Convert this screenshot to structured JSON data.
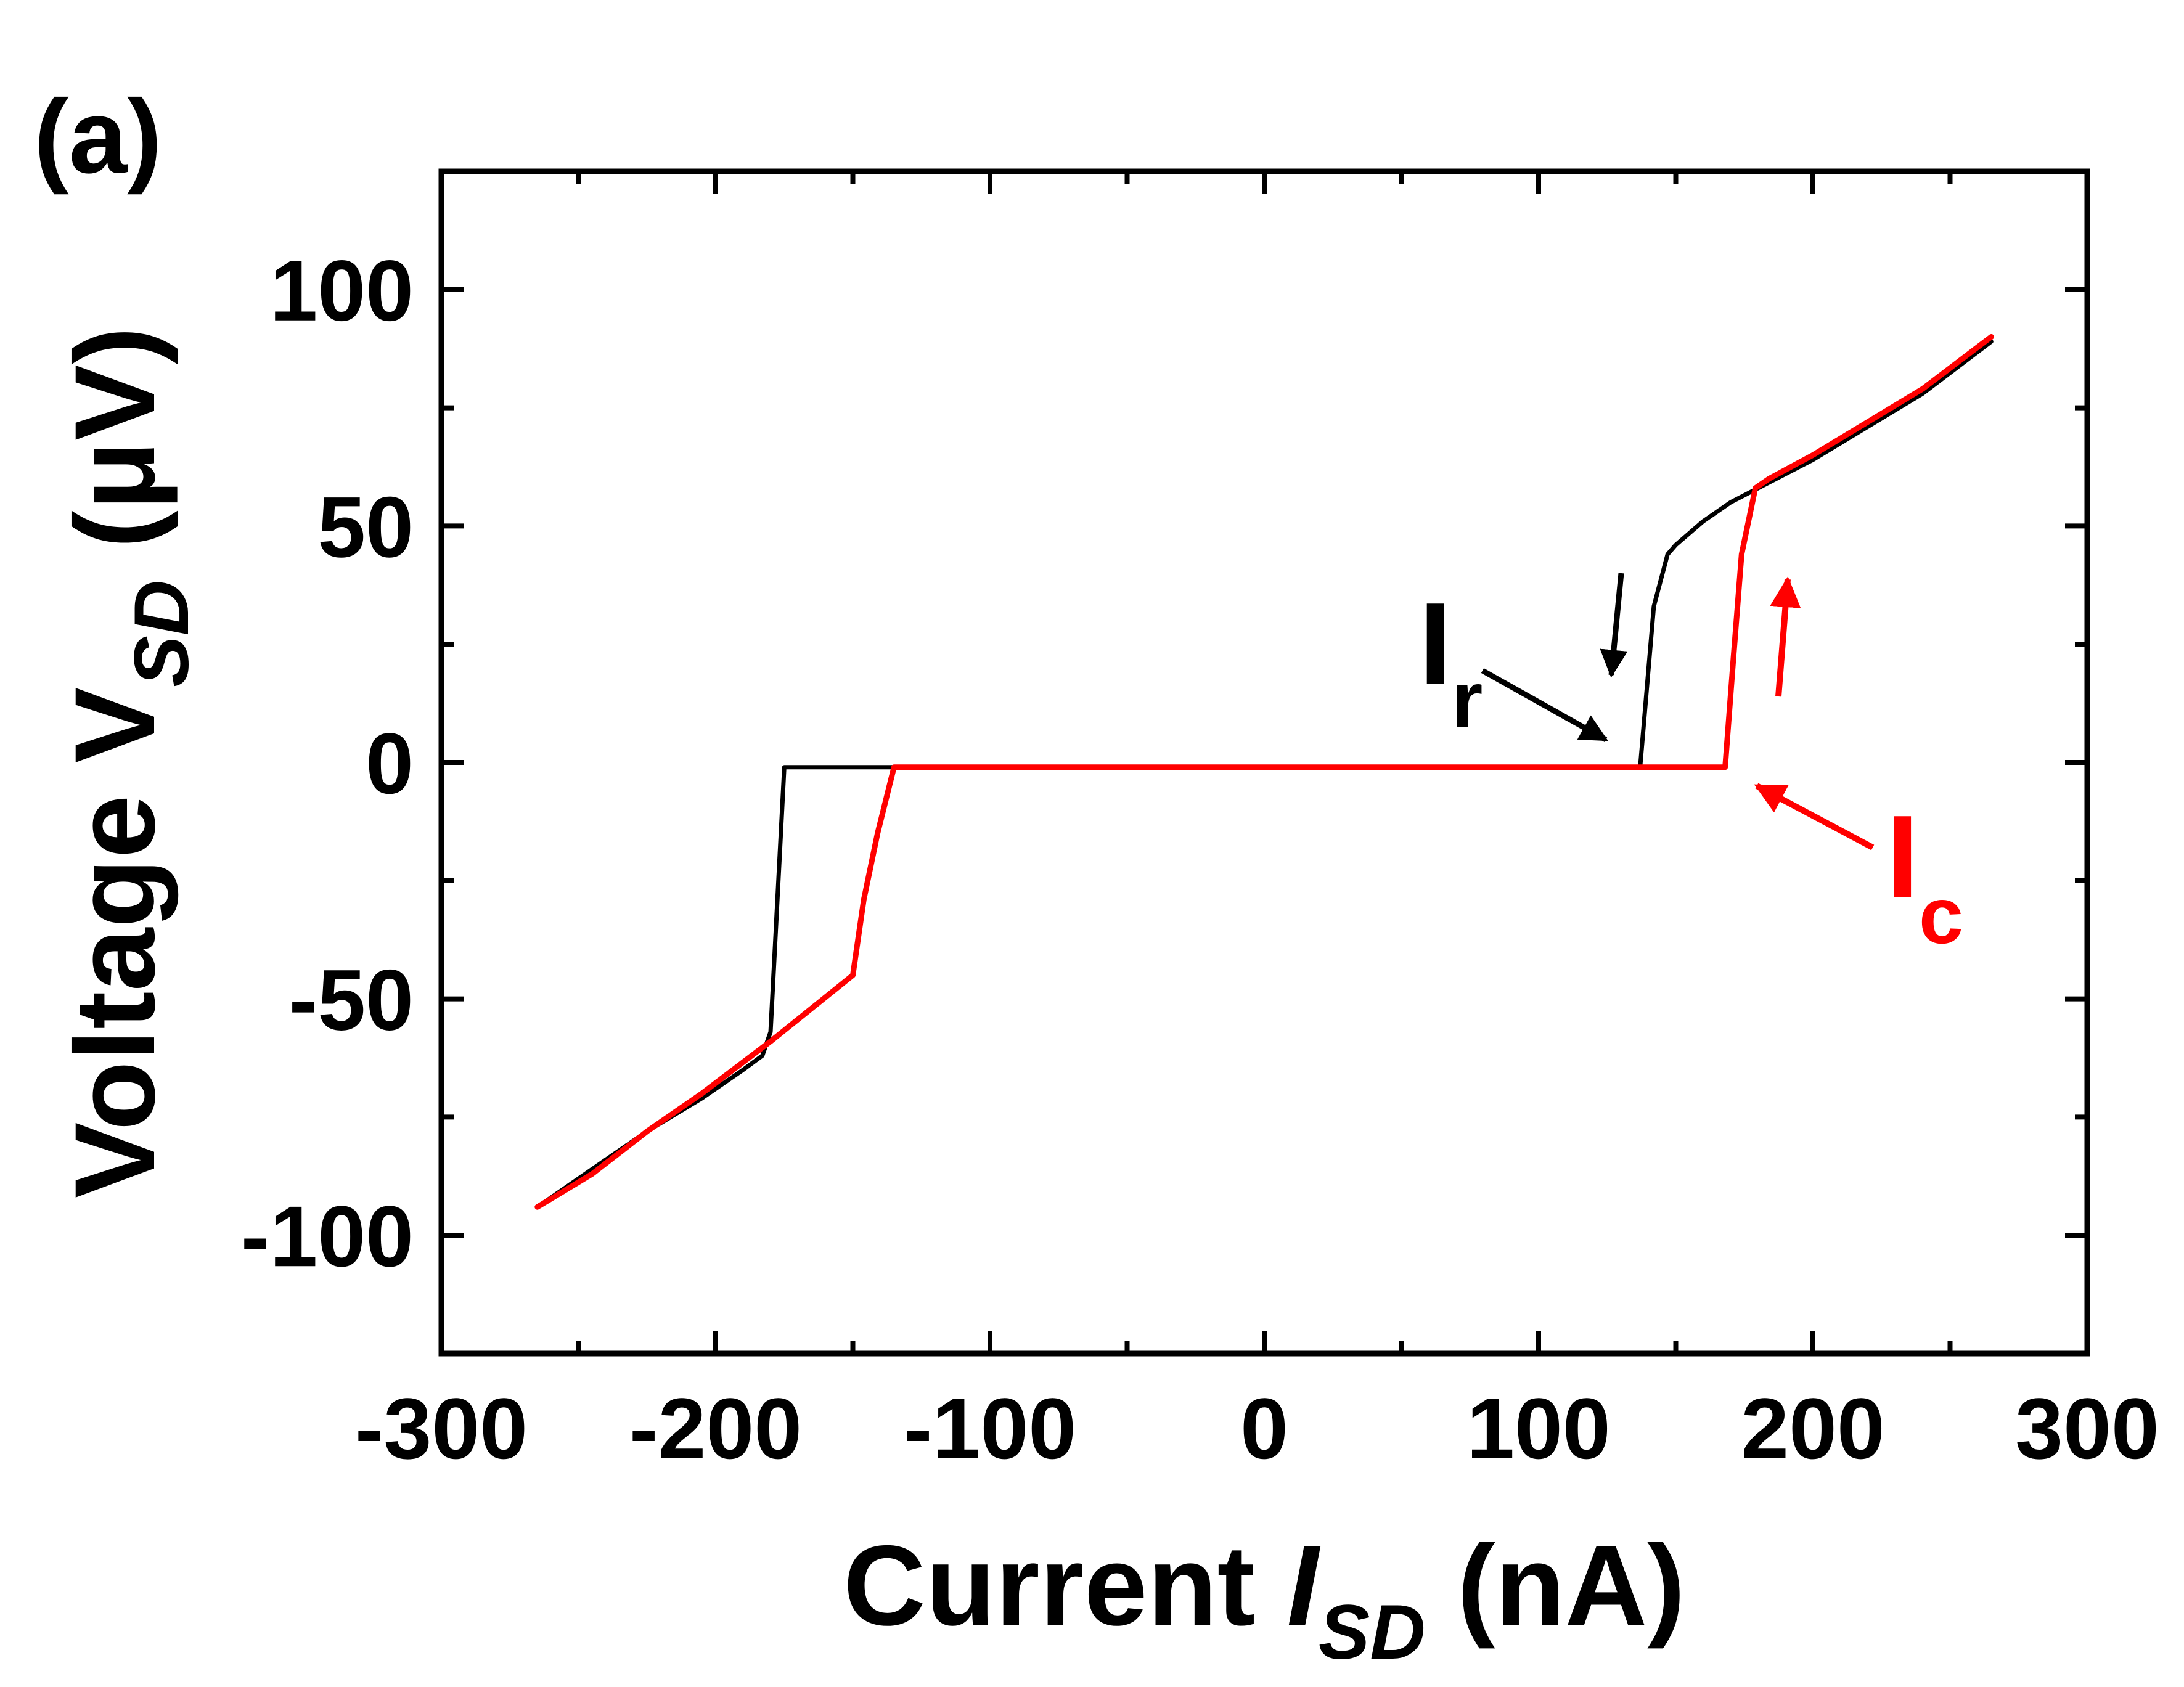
{
  "panel_label": "(a)",
  "colors": {
    "black_curve": "#000000",
    "red_curve": "#ff0000",
    "axes": "#000000"
  },
  "chart_data": {
    "type": "line",
    "xlabel": {
      "main": "Current ",
      "italic": "I",
      "sub": "SD",
      "unit": " (nA)"
    },
    "ylabel": {
      "main": "Voltage ",
      "italic": "V",
      "sub": "SD",
      "unit": " (μV)"
    },
    "xlim": [
      -300,
      300
    ],
    "ylim": [
      -125,
      125
    ],
    "xticks": [
      -300,
      -200,
      -100,
      0,
      100,
      200,
      300
    ],
    "xtick_labels": [
      "-300",
      "-200",
      "-100",
      "0",
      "100",
      "200",
      "300"
    ],
    "yticks": [
      -100,
      -50,
      0,
      50,
      100
    ],
    "ytick_labels": [
      "-100",
      "-50",
      "0",
      "50",
      "100"
    ],
    "grid": false,
    "series": [
      {
        "color": "#000000",
        "x": [
          -265,
          -245,
          -225,
          -205,
          -190,
          -183,
          -180,
          -175,
          -170,
          -160,
          -140,
          -100,
          -50,
          0,
          50,
          100,
          130,
          137,
          142,
          147,
          150,
          160,
          170,
          180,
          200,
          220,
          240,
          265
        ],
        "y": [
          -94,
          -86,
          -78,
          -71,
          -65,
          -62,
          -57,
          -1,
          -1,
          -1,
          -1,
          -1,
          -1,
          -1,
          -1,
          -1,
          -1,
          -1,
          33,
          44,
          46,
          51,
          55,
          58,
          64,
          71,
          78,
          89
        ]
      },
      {
        "color": "#ff0000",
        "x": [
          -265,
          -245,
          -225,
          -205,
          -180,
          -165,
          -150,
          -146,
          -141,
          -135,
          -130,
          -100,
          -50,
          0,
          50,
          100,
          150,
          168,
          171,
          174,
          179,
          184,
          200,
          220,
          240,
          265
        ],
        "y": [
          -94,
          -87,
          -78,
          -70,
          -59,
          -52,
          -45,
          -29,
          -15,
          -1,
          -1,
          -1,
          -1,
          -1,
          -1,
          -1,
          -1,
          -1,
          22,
          44,
          58,
          60,
          65,
          72,
          79,
          90
        ]
      }
    ],
    "annotations": [
      {
        "main": "I",
        "sub": "r",
        "color": "#000000"
      },
      {
        "main": "I",
        "sub": "c",
        "color": "#ff0000"
      }
    ]
  }
}
